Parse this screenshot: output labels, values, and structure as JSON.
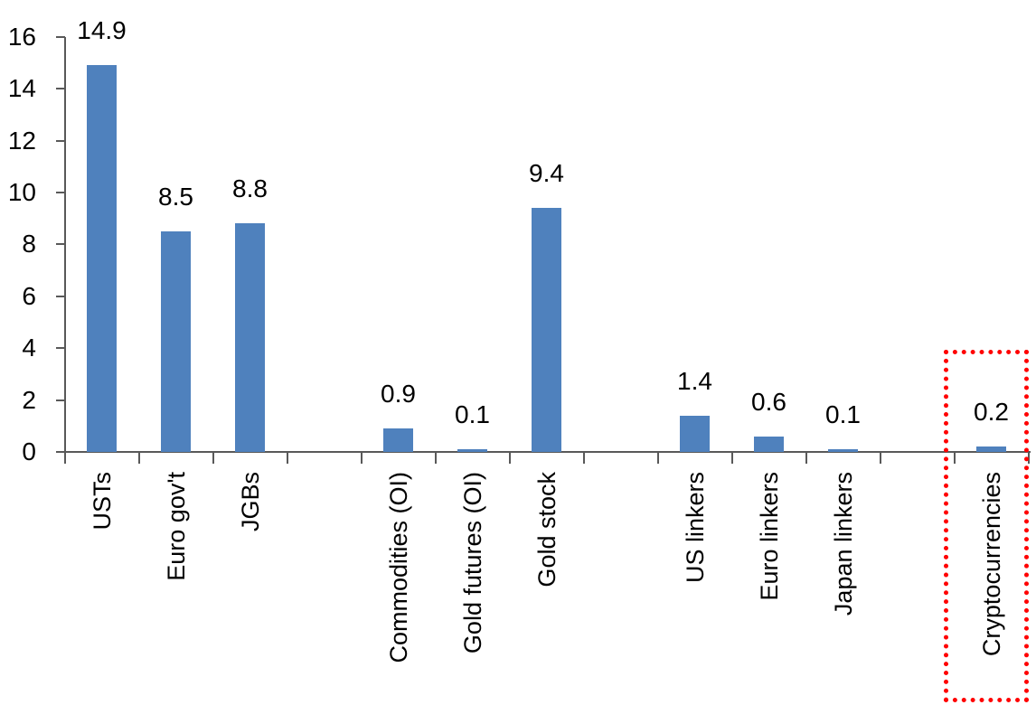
{
  "chart_data": {
    "type": "bar",
    "title": "",
    "categories": [
      "USTs",
      "Euro gov't",
      "JGBs",
      "Commodities (OI)",
      "Gold futures (OI)",
      "Gold stock",
      "US linkers",
      "Euro linkers",
      "Japan linkers",
      "Cryptocurrencies"
    ],
    "values": [
      14.9,
      8.5,
      8.8,
      0.9,
      0.1,
      9.4,
      1.4,
      0.6,
      0.1,
      0.2
    ],
    "series": [
      {
        "label": "USTs",
        "value": 14.9,
        "value_label": "14.9",
        "slot": 0
      },
      {
        "label": "Euro gov't",
        "value": 8.5,
        "value_label": "8.5",
        "slot": 1
      },
      {
        "label": "JGBs",
        "value": 8.8,
        "value_label": "8.8",
        "slot": 2
      },
      {
        "label": "Commodities (OI)",
        "value": 0.9,
        "value_label": "0.9",
        "slot": 4
      },
      {
        "label": "Gold futures (OI)",
        "value": 0.1,
        "value_label": "0.1",
        "slot": 5
      },
      {
        "label": "Gold stock",
        "value": 9.4,
        "value_label": "9.4",
        "slot": 6
      },
      {
        "label": "US linkers",
        "value": 1.4,
        "value_label": "1.4",
        "slot": 8
      },
      {
        "label": "Euro linkers",
        "value": 0.6,
        "value_label": "0.6",
        "slot": 9
      },
      {
        "label": "Japan linkers",
        "value": 0.1,
        "value_label": "0.1",
        "slot": 10
      },
      {
        "label": "Cryptocurrencies",
        "value": 0.2,
        "value_label": "0.2",
        "slot": 12
      }
    ],
    "y_axis": {
      "min": 0,
      "max": 16,
      "tick_step": 2,
      "ticks": [
        0,
        2,
        4,
        6,
        8,
        10,
        12,
        14,
        16
      ]
    },
    "x_axis": {
      "slot_count": 13,
      "empty_slots": [
        3,
        7,
        11
      ]
    },
    "grid": false,
    "legend": null,
    "colors": {
      "bar": "#4F81BD",
      "axis": "#595959",
      "text": "#000000",
      "highlight_border": "#FF0000"
    },
    "highlight": {
      "category": "Cryptocurrencies",
      "border_color": "#FF0000",
      "border_style": "dotted",
      "note": "red dotted rectangle around Cryptocurrencies column"
    }
  }
}
